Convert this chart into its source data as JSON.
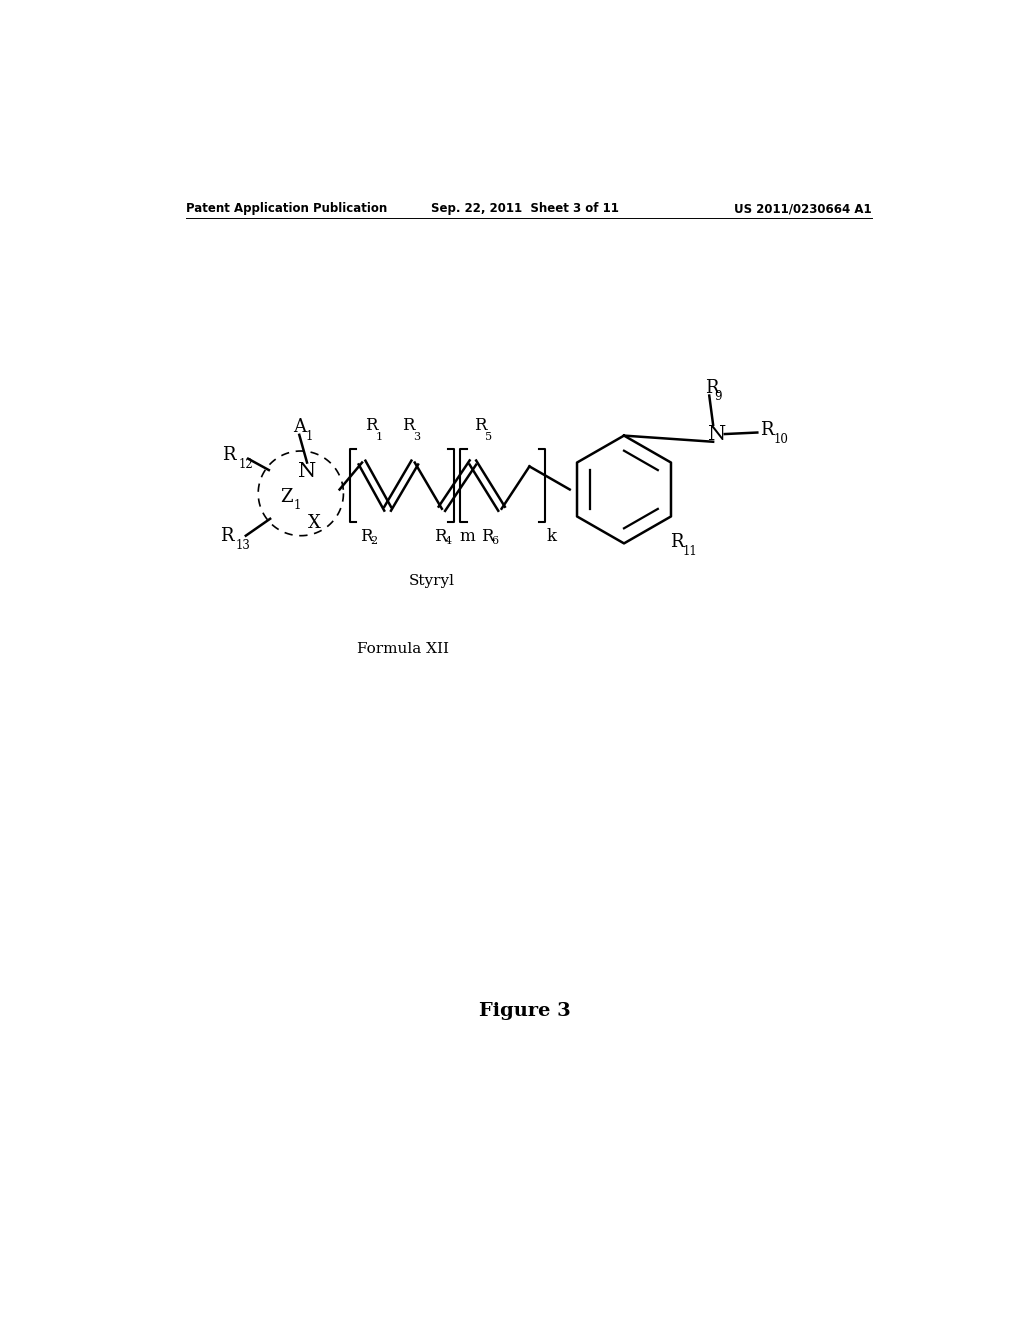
{
  "bg_color": "#ffffff",
  "header_left": "Patent Application Publication",
  "header_center": "Sep. 22, 2011  Sheet 3 of 11",
  "header_right": "US 2011/0230664 A1",
  "label_styryl": "Styryl",
  "label_formula": "Formula XII",
  "label_figure": "Figure 3",
  "fig_width": 10.24,
  "fig_height": 13.2
}
